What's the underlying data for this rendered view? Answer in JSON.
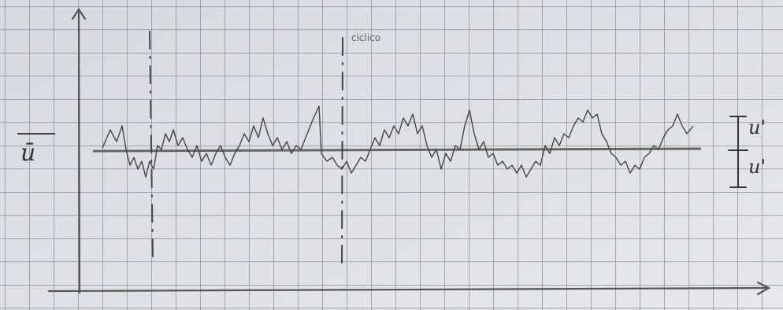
{
  "labels": {
    "mean": "ū",
    "fluctuation_up": "u'",
    "fluctuation_down": "u'",
    "annotation": "ciclico"
  }
}
